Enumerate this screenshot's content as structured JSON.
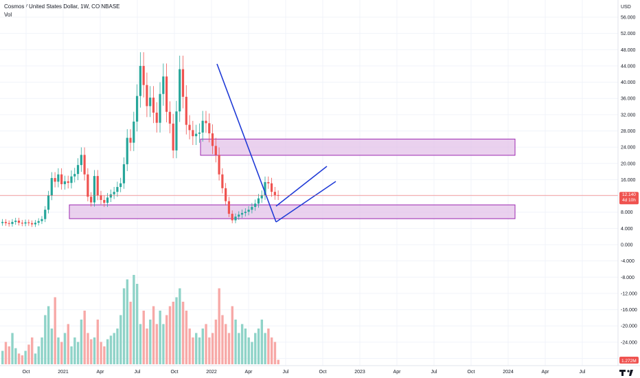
{
  "header": {
    "title": "Cosmos / United States Dollar, 1W, COINBASE",
    "volume_label": "Vol"
  },
  "chart_data": {
    "type": "candlestick",
    "title": "Cosmos / United States Dollar, 1W, COINBASE",
    "currency_label": "USD",
    "price_axis_ticks": [
      "56.000",
      "52.000",
      "48.000",
      "44.000",
      "40.000",
      "36.000",
      "32.000",
      "28.000",
      "24.000",
      "20.000",
      "16.000",
      "12.000",
      "8.000",
      "4.000",
      "0.000",
      "-4.000",
      "-8.000",
      "-12.000",
      "-16.000",
      "-20.000",
      "-24.000",
      "-28.000"
    ],
    "time_axis_ticks": [
      "Oct",
      "2021",
      "Apr",
      "Jul",
      "Oct",
      "2022",
      "Apr",
      "Jul",
      "Oct",
      "2023",
      "Apr",
      "Jul",
      "Oct",
      "2024",
      "Apr",
      "Jul"
    ],
    "ylim": [
      -30,
      58
    ],
    "last_price": "12.140",
    "countdown": "4d 10h",
    "volume_last": "1.272M",
    "colors": {
      "up": "#26a69a",
      "down": "#ef5350",
      "vol_up": "#8fd3c8",
      "vol_down": "#f7a9a7",
      "zone_fill": "#e1bee7",
      "zone_border": "#9c27b0",
      "trendline": "#1f3ad6",
      "last_price_badge": "#ef5350"
    },
    "zones": [
      {
        "t_start": 53,
        "t_end": 197,
        "low": 22.0,
        "high": 26.0
      },
      {
        "t_start": 14,
        "t_end": 197,
        "low": 6.4,
        "high": 9.8
      }
    ],
    "trendlines": [
      {
        "t1": 52,
        "p1": 45.0,
        "t2": 84,
        "p2": 5.4
      },
      {
        "t1": 84,
        "p1": 5.4,
        "t2": 106,
        "p2": 15.6
      },
      {
        "t1": 84,
        "p1": 10.2,
        "t2": 104,
        "p2": 19.5
      }
    ],
    "weekly_close": [
      5.6,
      5.3,
      5.1,
      5.6,
      5.9,
      5.4,
      5.2,
      5.5,
      5.3,
      5.0,
      5.4,
      5.8,
      6.3,
      8.6,
      12.1,
      16.4,
      15.5,
      17.3,
      14.9,
      15.6,
      15.2,
      16.8,
      17.4,
      19.6,
      22.1,
      17.3,
      11.8,
      10.4,
      16.9,
      12.1,
      11.0,
      10.3,
      11.6,
      12.4,
      13.0,
      14.2,
      15.1,
      19.8,
      26.3,
      25.1,
      30.3,
      36.6,
      44.0,
      39.3,
      34.1,
      36.2,
      32.5,
      30.0,
      37.1,
      41.4,
      32.7,
      29.8,
      23.2,
      32.8,
      43.2,
      36.4,
      29.5,
      28.2,
      26.7,
      27.3,
      27.6,
      30.5,
      29.9,
      27.4,
      24.3,
      22.1,
      17.3,
      13.9,
      10.7,
      7.6,
      6.0,
      6.9,
      7.4,
      7.8,
      8.1,
      8.6,
      9.3,
      10.1,
      11.4,
      12.2,
      15.4,
      15.1,
      13.0,
      12.2,
      12.14
    ]
  }
}
